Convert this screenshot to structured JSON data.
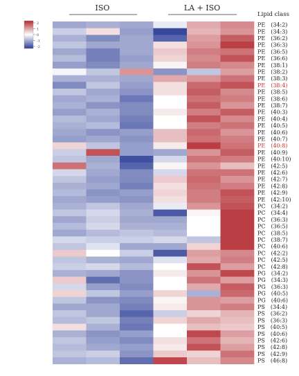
{
  "chart_data": {
    "type": "heatmap",
    "title": "",
    "column_groups": [
      {
        "label": "ISO",
        "columns": 3
      },
      {
        "label": "LA + ISO",
        "columns": 3
      }
    ],
    "row_header": "Lipid class",
    "legend": {
      "ticks": [
        "2",
        "1",
        "0",
        "-1",
        "-2"
      ],
      "min": -2,
      "max": 2,
      "high_color": "#b2282e",
      "mid_color": "#ffffff",
      "low_color": "#2c3d96"
    },
    "highlight_rows": [
      "PE　(38:4)",
      "PE　(40:8)"
    ],
    "highlight_color": "#d9322c",
    "rows": [
      {
        "label": "PE　(34:2)",
        "values": [
          -0.9,
          -0.8,
          -0.9,
          -0.2,
          0.8,
          1.1
        ]
      },
      {
        "label": "PE　(34:3)",
        "values": [
          -0.5,
          0.3,
          -1.0,
          -1.9,
          0.7,
          1.0
        ]
      },
      {
        "label": "PE　(36:2)",
        "values": [
          -0.8,
          -1.2,
          -0.9,
          -1.6,
          0.9,
          1.5
        ]
      },
      {
        "label": "PE　(36:3)",
        "values": [
          -0.6,
          -0.9,
          -0.9,
          0.3,
          1.0,
          1.8
        ]
      },
      {
        "label": "PE　(36:5)",
        "values": [
          -0.9,
          -1.3,
          -0.9,
          0.5,
          1.2,
          1.3
        ]
      },
      {
        "label": "PE　(36:6)",
        "values": [
          -0.7,
          -1.3,
          -1.0,
          0.4,
          1.1,
          1.6
        ]
      },
      {
        "label": "PE　(38:1)",
        "values": [
          -1.0,
          -1.2,
          -0.9,
          0.1,
          1.2,
          1.1
        ]
      },
      {
        "label": "PE　(38:2)",
        "values": [
          -0.1,
          -0.6,
          1.0,
          -1.1,
          -0.6,
          0.9
        ]
      },
      {
        "label": "PE　(38:3)",
        "values": [
          -0.8,
          -0.8,
          -0.9,
          0.8,
          1.0,
          1.3
        ]
      },
      {
        "label": "PE　(38:4)",
        "values": [
          -1.2,
          -0.6,
          -1.0,
          0.3,
          1.4,
          1.6
        ]
      },
      {
        "label": "PE　(38:5)",
        "values": [
          -0.6,
          -0.9,
          -1.1,
          0.3,
          1.5,
          1.1
        ]
      },
      {
        "label": "PE　(38:6)",
        "values": [
          -0.9,
          -0.8,
          -1.4,
          0.0,
          1.3,
          1.2
        ]
      },
      {
        "label": "PE　(38:7)",
        "values": [
          -0.8,
          -1.1,
          -1.2,
          0.0,
          1.5,
          1.0
        ]
      },
      {
        "label": "PE　(40:3)",
        "values": [
          -1.0,
          -0.8,
          -1.2,
          0.2,
          1.2,
          1.5
        ]
      },
      {
        "label": "PE　(40:4)",
        "values": [
          -0.7,
          -0.9,
          -1.3,
          0.0,
          1.6,
          1.1
        ]
      },
      {
        "label": "PE　(40:5)",
        "values": [
          -0.8,
          -0.7,
          -1.4,
          0.0,
          1.2,
          1.3
        ]
      },
      {
        "label": "PE　(40:6)",
        "values": [
          -0.9,
          -1.1,
          -1.0,
          0.6,
          1.4,
          1.0
        ]
      },
      {
        "label": "PE　(40:7)",
        "values": [
          -1.0,
          -0.9,
          -1.1,
          0.6,
          1.3,
          1.2
        ]
      },
      {
        "label": "PE　(40:8)",
        "values": [
          0.4,
          -0.6,
          -1.0,
          0.2,
          1.8,
          1.3
        ]
      },
      {
        "label": "PE　(40:9)",
        "values": [
          -0.5,
          1.6,
          -1.0,
          -0.9,
          1.0,
          1.5
        ]
      },
      {
        "label": "PE　(40:10)",
        "values": [
          -0.6,
          -0.9,
          -1.8,
          -0.4,
          1.3,
          1.2
        ]
      },
      {
        "label": "PE　(42:5)",
        "values": [
          1.3,
          -0.8,
          -1.6,
          0.1,
          1.0,
          0.6
        ]
      },
      {
        "label": "PE　(42:6)",
        "values": [
          -0.4,
          -0.9,
          -1.2,
          -0.4,
          1.3,
          1.3
        ]
      },
      {
        "label": "PE　(42:7)",
        "values": [
          -0.6,
          -1.0,
          -1.2,
          0.5,
          1.4,
          1.0
        ]
      },
      {
        "label": "PE　(42:8)",
        "values": [
          -0.8,
          -0.9,
          -1.3,
          0.3,
          1.3,
          1.2
        ]
      },
      {
        "label": "PE　(42:9)",
        "values": [
          -0.7,
          -1.1,
          -1.0,
          0.4,
          1.2,
          1.6
        ]
      },
      {
        "label": "PE　(42:10)",
        "values": [
          -0.9,
          -1.0,
          -1.1,
          0.3,
          1.2,
          1.5
        ]
      },
      {
        "label": "PC　(34:2)",
        "values": [
          -0.8,
          -0.6,
          -0.9,
          -0.2,
          1.0,
          1.6
        ]
      },
      {
        "label": "PC　(34:4)",
        "values": [
          -0.6,
          -0.4,
          -0.8,
          -1.7,
          0.1,
          1.8
        ]
      },
      {
        "label": "PC　(36:3)",
        "values": [
          -0.9,
          -0.5,
          -0.9,
          -0.9,
          0.0,
          1.8
        ]
      },
      {
        "label": "PC　(36:5)",
        "values": [
          -0.7,
          -0.4,
          -0.8,
          -0.8,
          0.0,
          1.8
        ]
      },
      {
        "label": "PC　(38:5)",
        "values": [
          -0.9,
          -0.7,
          -0.6,
          -0.7,
          0.0,
          1.8
        ]
      },
      {
        "label": "PC　(38:7)",
        "values": [
          -0.4,
          -0.5,
          -0.5,
          -0.4,
          -0.6,
          1.8
        ]
      },
      {
        "label": "PC　(40:6)",
        "values": [
          -0.6,
          -0.3,
          -0.9,
          -0.9,
          0.4,
          1.8
        ]
      },
      {
        "label": "PC　(42:2)",
        "values": [
          0.5,
          0.0,
          -0.5,
          -1.7,
          0.9,
          1.1
        ]
      },
      {
        "label": "PC　(42:5)",
        "values": [
          -0.6,
          -0.8,
          -0.9,
          -0.3,
          0.8,
          1.2
        ]
      },
      {
        "label": "PC　(42:8)",
        "values": [
          -0.5,
          -0.4,
          -0.7,
          0.0,
          1.6,
          0.9
        ]
      },
      {
        "label": "PG　(34:2)",
        "values": [
          -0.8,
          -0.9,
          -1.1,
          0.2,
          1.0,
          1.7
        ]
      },
      {
        "label": "PG　(34:3)",
        "values": [
          0.5,
          -1.5,
          -1.1,
          0.0,
          1.3,
          0.9
        ]
      },
      {
        "label": "PG　(36:3)",
        "values": [
          -0.4,
          -1.0,
          -1.2,
          0.0,
          0.8,
          1.5
        ]
      },
      {
        "label": "PG　(40:5)",
        "values": [
          0.4,
          -0.6,
          -1.0,
          0.4,
          -0.8,
          1.4
        ]
      },
      {
        "label": "PG　(40:6)",
        "values": [
          -0.6,
          -1.1,
          -1.2,
          0.1,
          1.0,
          0.9
        ]
      },
      {
        "label": "PS　(34:4)",
        "values": [
          -0.9,
          -0.9,
          -1.3,
          0.2,
          1.0,
          1.2
        ]
      },
      {
        "label": "PS　(36:2)",
        "values": [
          -0.6,
          -0.9,
          -1.6,
          -0.5,
          0.4,
          0.7
        ]
      },
      {
        "label": "PS　(36:3)",
        "values": [
          -0.7,
          -0.6,
          -1.3,
          0.4,
          0.8,
          0.6
        ]
      },
      {
        "label": "PS　(40:5)",
        "values": [
          0.3,
          -0.8,
          -1.4,
          0.0,
          0.6,
          0.5
        ]
      },
      {
        "label": "PS　(40:6)",
        "values": [
          -0.8,
          -1.1,
          -1.0,
          0.0,
          1.7,
          0.9
        ]
      },
      {
        "label": "PS　(42:6)",
        "values": [
          -0.6,
          -1.0,
          -1.2,
          0.3,
          1.3,
          0.7
        ]
      },
      {
        "label": "PS　(42:8)",
        "values": [
          -0.7,
          -0.9,
          -1.0,
          0.2,
          1.6,
          0.9
        ]
      },
      {
        "label": "PS　(42:9)",
        "values": [
          -0.6,
          -0.5,
          -1.1,
          0.5,
          0.4,
          1.3
        ]
      },
      {
        "label": "PS　(46:8)",
        "values": [
          -0.8,
          -0.7,
          -1.5,
          1.7,
          0.6,
          1.1
        ]
      }
    ]
  }
}
